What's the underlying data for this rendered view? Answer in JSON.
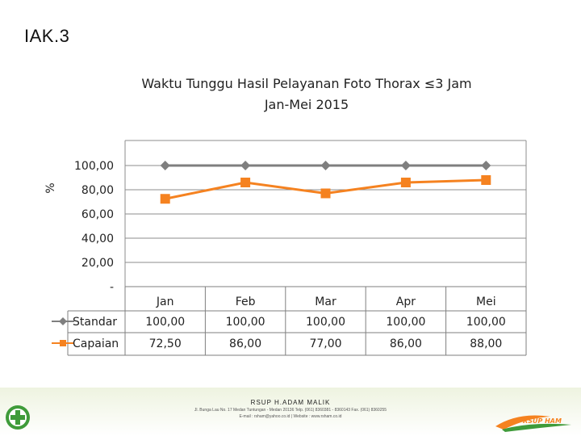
{
  "slide_title": "IAK.3",
  "chart_data": {
    "type": "line",
    "title_lines": [
      "Waktu Tunggu Hasil Pelayanan Foto Thorax ≤3 Jam",
      "Jan-Mei 2015"
    ],
    "ylabel": "%",
    "ylim": [
      0,
      100
    ],
    "y_ticks": [
      "-",
      "20,00",
      "40,00",
      "60,00",
      "80,00",
      "100,00"
    ],
    "y_tick_values": [
      0,
      20,
      40,
      60,
      80,
      100
    ],
    "categories": [
      "Jan",
      "Feb",
      "Mar",
      "Apr",
      "Mei"
    ],
    "grid": true,
    "legend_placement": "data-table",
    "series": [
      {
        "name": "Standar",
        "values": [
          100,
          100,
          100,
          100,
          100
        ],
        "labels": [
          "100,00",
          "100,00",
          "100,00",
          "100,00",
          "100,00"
        ],
        "color": "#7f7f7f",
        "marker": "diamond"
      },
      {
        "name": "Capaian",
        "values": [
          72.5,
          86,
          77,
          86,
          88
        ],
        "labels": [
          "72,50",
          "86,00",
          "77,00",
          "86,00",
          "88,00"
        ],
        "color": "#f58220",
        "marker": "square"
      }
    ]
  },
  "footer": {
    "organization": "RSUP H.ADAM MALIK",
    "address": "Jl. Bunga Lau No. 17 Medan Tuntungan - Medan 20136 Telp. (061) 8360381 - 8360143 Fax. (061) 8360255",
    "contact": "E-mail : rsham@yahoo.co.id | Website : www.rsham.co.id",
    "logo_right_text": "RSUP HAM"
  },
  "colors": {
    "footer_green": "#3f9b3a",
    "footer_orange": "#f58220"
  }
}
